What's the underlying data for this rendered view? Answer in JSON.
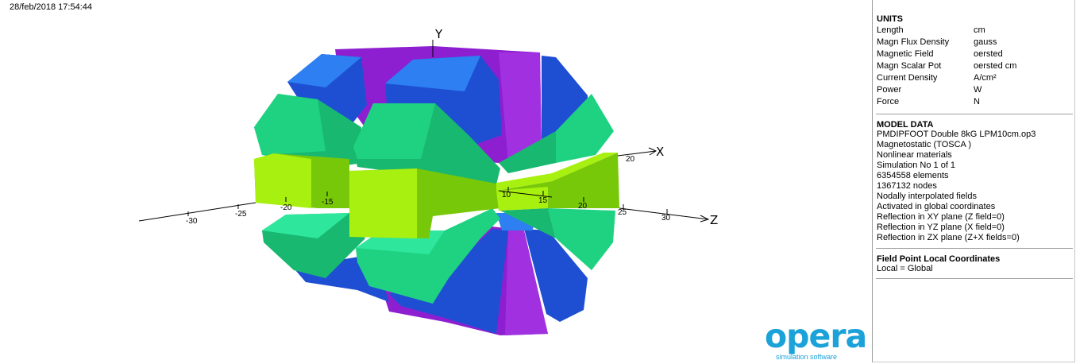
{
  "timestamp": "28/feb/2018 17:54:44",
  "axes": {
    "y_label": "Y",
    "x_label": "X",
    "z_label": "Z",
    "z_ticks": [
      "-30",
      "-25",
      "-20",
      "-15",
      "10",
      "15",
      "20",
      "25",
      "30"
    ],
    "x_ticks": [
      "20"
    ]
  },
  "colors": {
    "purple": "#8e1fd0",
    "dark_blue": "#1e4fd2",
    "light_blue": "#2d7ff2",
    "green": "#1ed282",
    "dark_green": "#19b870",
    "lime": "#a8f010",
    "dark_lime": "#78c80a",
    "logo_blue": "#1aa2d9"
  },
  "logo": {
    "word": "opera",
    "tagline": "simulation software"
  },
  "units": {
    "title": "UNITS",
    "rows": [
      {
        "name": "Length",
        "value": "cm"
      },
      {
        "name": "Magn Flux Density",
        "value": "gauss"
      },
      {
        "name": "Magnetic Field",
        "value": "oersted"
      },
      {
        "name": "Magn Scalar Pot",
        "value": "oersted cm"
      },
      {
        "name": "Current Density",
        "value": "A/cm²"
      },
      {
        "name": "Power",
        "value": "W"
      },
      {
        "name": "Force",
        "value": "N"
      }
    ]
  },
  "model_data": {
    "title": "MODEL DATA",
    "lines": [
      "PMDIPFOOT Double 8kG LPM10cm.op3",
      "Magnetostatic (TOSCA )",
      "Nonlinear materials",
      "Simulation No 1 of 1",
      "6354558 elements",
      "1367132 nodes",
      "Nodally interpolated fields",
      "Activated in global coordinates",
      "Reflection in XY plane (Z field=0)",
      "Reflection in YZ plane (X field=0)",
      "Reflection in ZX plane (Z+X fields=0)"
    ]
  },
  "field_point": {
    "title": "Field Point Local Coordinates",
    "value": "Local = Global"
  }
}
